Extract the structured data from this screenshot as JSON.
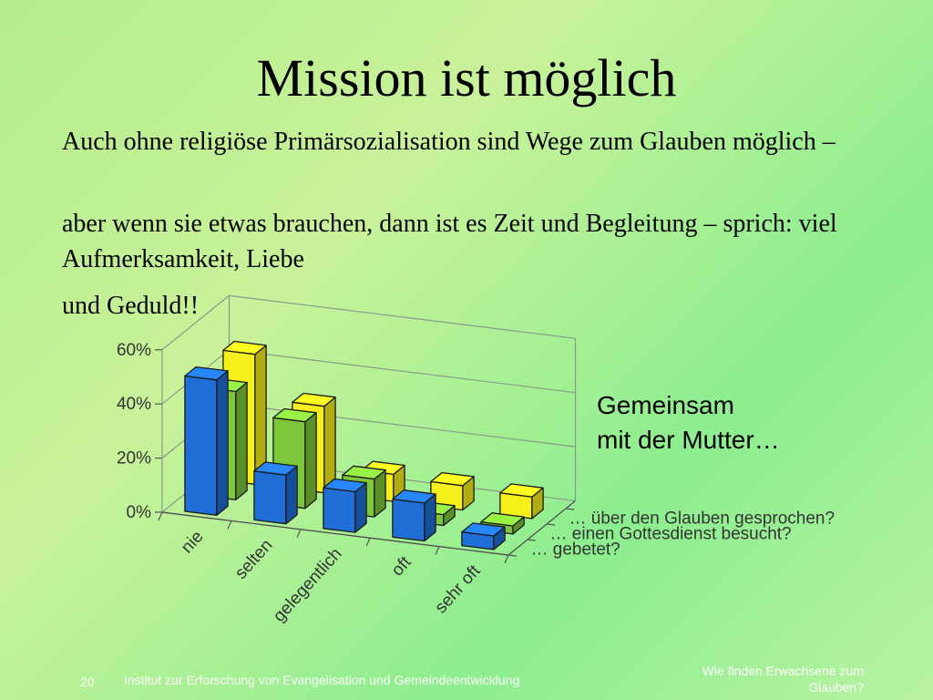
{
  "slide": {
    "title": "Mission ist möglich",
    "paragraphs": [
      "Auch ohne religiöse Primärsozialisation sind Wege zum Glauben möglich –",
      "aber wenn sie etwas brauchen, dann ist es Zeit und Begleitung – sprich: viel Aufmerksamkeit, Liebe",
      "und Geduld!!"
    ],
    "caption_lines": [
      "Gemeinsam",
      "mit der Mutter…"
    ]
  },
  "footer": {
    "page_number": "20",
    "institute": "Institut zur Erforschung von Evangelisation und Gemeindeentwicklung",
    "right_lines": [
      "Wie finden Erwachsene zum",
      "Glauben?"
    ]
  },
  "chart_data": {
    "type": "bar",
    "subtype": "3d-clustered",
    "categories": [
      "nie",
      "selten",
      "gelegentlich",
      "oft",
      "sehr oft"
    ],
    "yticks": [
      "0%",
      "20%",
      "40%",
      "60%"
    ],
    "ylim": [
      0,
      60
    ],
    "grid": true,
    "series": [
      {
        "name": "… gebetet?",
        "color": "#1f6fd6",
        "values": [
          50,
          18,
          15,
          14,
          5
        ]
      },
      {
        "name": "… einen Gottesdienst besucht?",
        "color": "#7ec63a",
        "values": [
          40,
          32,
          14,
          4,
          3
        ]
      },
      {
        "name": "… über den Glauben gesprochen?",
        "color": "#f7ef1a",
        "values": [
          48,
          32,
          10,
          9,
          8
        ]
      }
    ]
  }
}
